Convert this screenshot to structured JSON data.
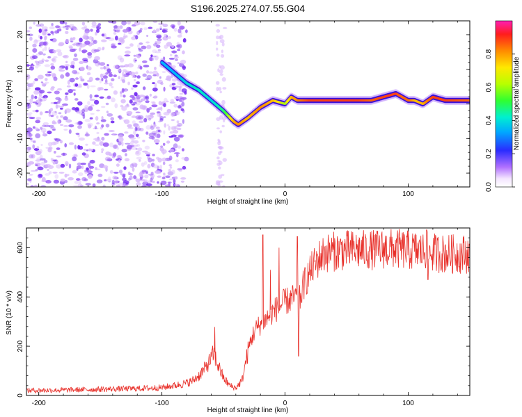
{
  "title": "S196.2025.274.07.55.G04",
  "colors": {
    "snr_line": "#e8302a",
    "scatter_base": "#6a2cf0",
    "axis": "#000000"
  },
  "chart_data": [
    {
      "type": "heatmap",
      "name": "spectrogram",
      "xlabel": "Height of straight line (km)",
      "ylabel": "Frequency (Hz)",
      "xlim": [
        -210,
        150
      ],
      "ylim": [
        -24,
        24
      ],
      "xticks": [
        -200,
        -100,
        0,
        100
      ],
      "yticks": [
        20,
        10,
        0,
        -10,
        -20
      ],
      "colorbar": {
        "label": "Normalized spectral amplitude",
        "range": [
          0,
          1
        ],
        "ticks": [
          "0.0",
          "0.2",
          "0.4",
          "0.6",
          "0.8"
        ]
      },
      "noise_region_km": [
        -210,
        -80
      ],
      "signal_ridge": {
        "x": [
          -100,
          -90,
          -80,
          -70,
          -60,
          -50,
          -42,
          -38,
          -30,
          -20,
          -10,
          0,
          5,
          10,
          20,
          40,
          60,
          70,
          80,
          90,
          95,
          100,
          105,
          112,
          120,
          130,
          150
        ],
        "freq": [
          12,
          9,
          6,
          4,
          1,
          -2,
          -5,
          -6,
          -4,
          -1,
          1,
          0,
          2,
          1,
          1,
          1,
          1,
          1,
          2,
          3,
          2,
          1,
          1,
          0,
          2,
          1,
          1
        ],
        "amplitude": [
          0.45,
          0.45,
          0.5,
          0.55,
          0.5,
          0.6,
          0.8,
          0.85,
          0.8,
          0.85,
          0.8,
          0.7,
          0.8,
          0.85,
          0.95,
          0.95,
          0.95,
          0.9,
          0.95,
          0.95,
          0.9,
          0.9,
          0.8,
          0.8,
          0.95,
          0.95,
          0.9
        ]
      }
    },
    {
      "type": "line",
      "name": "snr",
      "xlabel": "Height of straight line (km)",
      "ylabel": "SNR (10 * v/v)",
      "xlim": [
        -210,
        150
      ],
      "ylim": [
        0,
        680
      ],
      "xticks": [
        -200,
        -100,
        0,
        100
      ],
      "yticks": [
        0,
        200,
        400,
        600
      ],
      "series": [
        {
          "name": "SNR",
          "x": [
            -210,
            -180,
            -150,
            -120,
            -100,
            -90,
            -80,
            -75,
            -70,
            -65,
            -60,
            -58,
            -55,
            -50,
            -45,
            -40,
            -35,
            -30,
            -28,
            -25,
            -20,
            -15,
            -10,
            -5,
            0,
            5,
            10,
            12,
            15,
            20,
            25,
            30,
            35,
            40,
            50,
            60,
            70,
            80,
            90,
            100,
            110,
            120,
            130,
            140,
            150
          ],
          "y": [
            20,
            22,
            25,
            28,
            32,
            40,
            50,
            60,
            80,
            110,
            150,
            170,
            130,
            70,
            40,
            30,
            60,
            180,
            220,
            260,
            290,
            310,
            340,
            360,
            380,
            390,
            400,
            390,
            450,
            500,
            540,
            570,
            580,
            585,
            590,
            590,
            590,
            595,
            595,
            590,
            585,
            580,
            575,
            575,
            575
          ],
          "spikes": [
            {
              "x": -57,
              "y": 278
            },
            {
              "x": -18,
              "y": 652
            },
            {
              "x": -12,
              "y": 510
            },
            {
              "x": -5,
              "y": 600
            },
            {
              "x": 10,
              "y": 645
            },
            {
              "x": 11,
              "y": 160
            },
            {
              "x": 115,
              "y": 672
            },
            {
              "x": 116,
              "y": 470
            }
          ]
        }
      ]
    }
  ]
}
